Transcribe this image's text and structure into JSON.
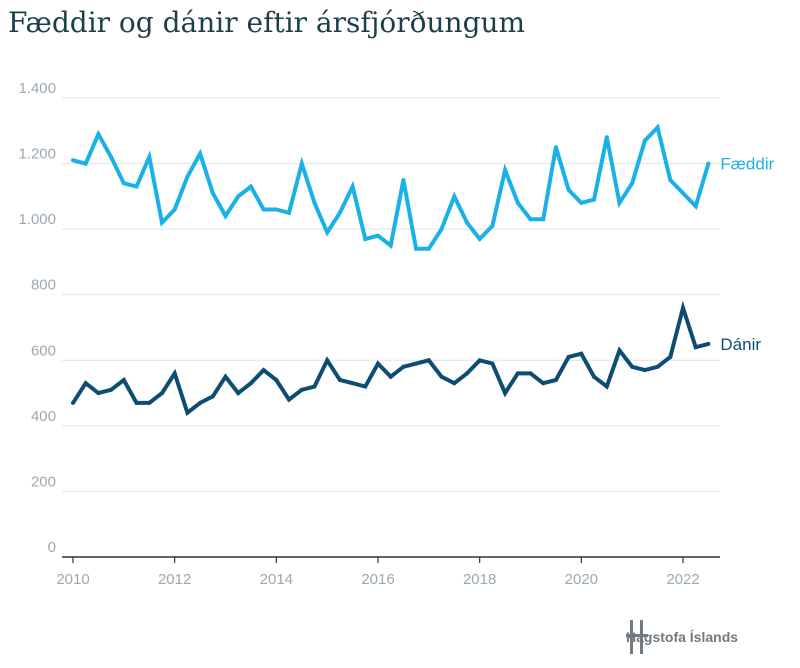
{
  "title": "Fæddir og dánir eftir ársfjórðungum",
  "brand": {
    "name": "Hagstofa Íslands"
  },
  "colors": {
    "faeddir": "#1ab0e8",
    "danir": "#0d4d72",
    "grid": "#dfe4e7",
    "tick": "#9aa9b1"
  },
  "chart_data": {
    "type": "line",
    "title": "Fæddir og dánir eftir ársfjórðungum",
    "xlabel": "",
    "ylabel": "",
    "ylim": [
      0,
      1400
    ],
    "xlim": [
      2010,
      2022.75
    ],
    "yticks": [
      0,
      200,
      400,
      600,
      800,
      1000,
      1200,
      1400
    ],
    "ytick_labels": [
      "0",
      "200",
      "400",
      "600",
      "800",
      "1.000",
      "1.200",
      "1.400"
    ],
    "xticks": [
      2010,
      2012,
      2014,
      2016,
      2018,
      2020,
      2022
    ],
    "xtick_labels": [
      "2010",
      "2012",
      "2014",
      "2016",
      "2018",
      "2020",
      "2022"
    ],
    "grid": true,
    "x": [
      "2010Q1",
      "2010Q2",
      "2010Q3",
      "2010Q4",
      "2011Q1",
      "2011Q2",
      "2011Q3",
      "2011Q4",
      "2012Q1",
      "2012Q2",
      "2012Q3",
      "2012Q4",
      "2013Q1",
      "2013Q2",
      "2013Q3",
      "2013Q4",
      "2014Q1",
      "2014Q2",
      "2014Q3",
      "2014Q4",
      "2015Q1",
      "2015Q2",
      "2015Q3",
      "2015Q4",
      "2016Q1",
      "2016Q2",
      "2016Q3",
      "2016Q4",
      "2017Q1",
      "2017Q2",
      "2017Q3",
      "2017Q4",
      "2018Q1",
      "2018Q2",
      "2018Q3",
      "2018Q4",
      "2019Q1",
      "2019Q2",
      "2019Q3",
      "2019Q4",
      "2020Q1",
      "2020Q2",
      "2020Q3",
      "2020Q4",
      "2021Q1",
      "2021Q2",
      "2021Q3",
      "2021Q4",
      "2022Q1",
      "2022Q2",
      "2022Q3"
    ],
    "series": [
      {
        "name": "Fæddir",
        "color": "#1ab0e8",
        "values": [
          1210,
          1200,
          1290,
          1220,
          1140,
          1130,
          1220,
          1020,
          1060,
          1160,
          1230,
          1110,
          1040,
          1100,
          1130,
          1060,
          1060,
          1050,
          1200,
          1080,
          990,
          1050,
          1130,
          970,
          980,
          950,
          1150,
          940,
          940,
          1000,
          1100,
          1020,
          970,
          1010,
          1180,
          1080,
          1030,
          1030,
          1250,
          1120,
          1080,
          1090,
          1280,
          1080,
          1140,
          1270,
          1310,
          1150,
          1110,
          1070,
          1200
        ]
      },
      {
        "name": "Dánir",
        "color": "#0d4d72",
        "values": [
          470,
          530,
          500,
          510,
          540,
          470,
          470,
          500,
          560,
          440,
          470,
          490,
          550,
          500,
          530,
          570,
          540,
          480,
          510,
          520,
          600,
          540,
          530,
          520,
          590,
          550,
          580,
          590,
          600,
          550,
          530,
          560,
          600,
          590,
          500,
          560,
          560,
          530,
          540,
          610,
          620,
          550,
          520,
          630,
          580,
          570,
          580,
          610,
          760,
          640,
          650
        ]
      }
    ]
  }
}
